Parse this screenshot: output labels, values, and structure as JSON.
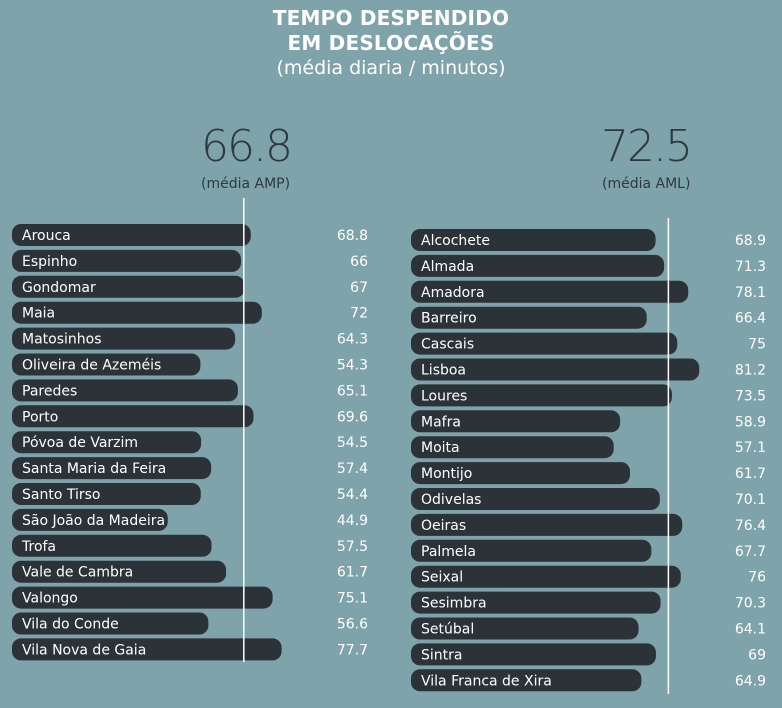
{
  "header": {
    "title_line1": "TEMPO DESPENDIDO",
    "title_line2": "EM DESLOCAÇÕES",
    "subtitle": "(média diaria / minutos)"
  },
  "colors": {
    "background": "#7fa3aa",
    "bar": "#2b3338",
    "text": "#ffffff",
    "average_line": "#ffffff",
    "average_text": "#2c3a40"
  },
  "chart_data": [
    {
      "type": "bar",
      "orientation": "horizontal",
      "average_value": "66.8",
      "average_label": "(média AMP)",
      "average": 66.8,
      "categories": [
        "Arouca",
        "Espinho",
        "Gondomar",
        "Maia",
        "Matosinhos",
        "Oliveira de Azeméis",
        "Paredes",
        "Porto",
        "Póvoa de Varzim",
        "Santa Maria da Feira",
        "Santo Tirso",
        "São João da Madeira",
        "Trofa",
        "Vale de Cambra",
        "Valongo",
        "Vila do Conde",
        "Vila Nova de Gaia"
      ],
      "values": [
        68.8,
        66,
        67,
        72,
        64.3,
        54.3,
        65.1,
        69.6,
        54.5,
        57.4,
        54.4,
        44.9,
        57.5,
        61.7,
        75.1,
        56.6,
        77.7
      ],
      "value_labels": [
        "68.8",
        "66",
        "67",
        "72",
        "64.3",
        "54.3",
        "65.1",
        "69.6",
        "54.5",
        "57.4",
        "54.4",
        "44.9",
        "57.5",
        "61.7",
        "75.1",
        "56.6",
        "77.7"
      ]
    },
    {
      "type": "bar",
      "orientation": "horizontal",
      "average_value": "72.5",
      "average_label": "(média AML)",
      "average": 72.5,
      "categories": [
        "Alcochete",
        "Almada",
        "Amadora",
        "Barreiro",
        "Cascais",
        "Lisboa",
        "Loures",
        "Mafra",
        "Moita",
        "Montijo",
        "Odivelas",
        "Oeiras",
        "Palmela",
        "Seixal",
        "Sesimbra",
        "Setúbal",
        "Sintra",
        "Vila Franca de Xira"
      ],
      "values": [
        68.9,
        71.3,
        78.1,
        66.4,
        75,
        81.2,
        73.5,
        58.9,
        57.1,
        61.7,
        70.1,
        76.4,
        67.7,
        76,
        70.3,
        64.1,
        69,
        64.9
      ],
      "value_labels": [
        "68.9",
        "71.3",
        "78.1",
        "66.4",
        "75",
        "81.2",
        "73.5",
        "58.9",
        "57.1",
        "61.7",
        "70.1",
        "76.4",
        "67.7",
        "76",
        "70.3",
        "64.1",
        "69",
        "64.9"
      ]
    }
  ]
}
